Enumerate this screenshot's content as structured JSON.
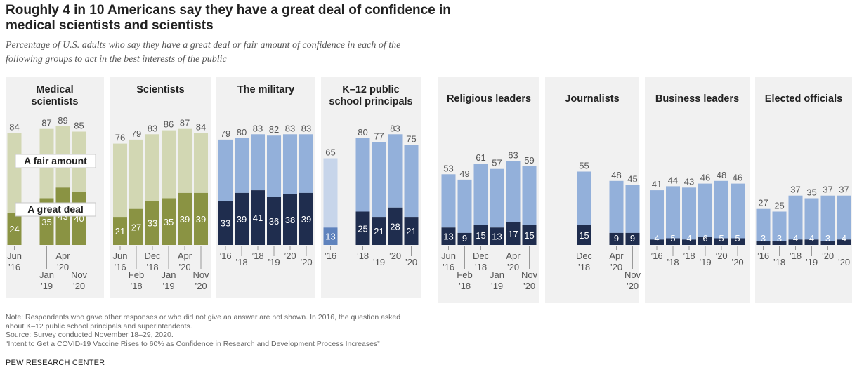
{
  "title": "Roughly 4 in 10 Americans say they have a great deal of confidence in medical scientists and scientists",
  "subtitle": "Percentage of U.S. adults who say they have a great deal or fair amount of confidence in each of the following groups to act in the best interests of the public",
  "note_lines": [
    "Note: Respondents who gave other responses or who did not give an answer are not shown. In 2016, the question asked",
    "about K–12 public school principals and superintendents.",
    "Source: Survey conducted November 18–29, 2020.",
    "“Intent to Get a COVID-19 Vaccine Rises to 60% as Confidence in Research and Development Process Increases”"
  ],
  "source_label": "PEW RESEARCH CENTER",
  "colors": {
    "panel_bg": "#f1f1f1",
    "green_light": "#d2d7b3",
    "green_dark": "#8a9343",
    "blue_light": "#93b0da",
    "blue_dark": "#1f2d4e",
    "blue_faded_light": "#c7d5ea",
    "blue_faded_dark": "#5f83bd",
    "label_gray": "#555555"
  },
  "chart_data": [
    {
      "type": "bar",
      "stacked": true,
      "title": "Medical scientists",
      "palette": "green",
      "ylim": [
        0,
        100
      ],
      "bars": [
        {
          "slot": 0,
          "total": 84,
          "great_deal": 24
        },
        {
          "slot": 2,
          "total": 87,
          "great_deal": 35
        },
        {
          "slot": 3,
          "total": 89,
          "great_deal": 43
        },
        {
          "slot": 4,
          "total": 85,
          "great_deal": 40
        }
      ],
      "series": [
        {
          "name": "A fair amount"
        },
        {
          "name": "A great deal"
        }
      ],
      "x_labels": [
        {
          "slot": 0,
          "row": "top",
          "l1": "Jun",
          "l2": "’16"
        },
        {
          "slot": 2,
          "row": "bottom",
          "l1": "Jan",
          "l2": "’19"
        },
        {
          "slot": 3,
          "row": "top",
          "l1": "Apr",
          "l2": "’20"
        },
        {
          "slot": 4,
          "row": "bottom",
          "l1": "Nov",
          "l2": "’20"
        }
      ]
    },
    {
      "type": "bar",
      "stacked": true,
      "title": "Scientists",
      "palette": "green",
      "ylim": [
        0,
        100
      ],
      "bars": [
        {
          "slot": 0,
          "total": 76,
          "great_deal": 21
        },
        {
          "slot": 1,
          "total": 79,
          "great_deal": 27
        },
        {
          "slot": 2,
          "total": 83,
          "great_deal": 33
        },
        {
          "slot": 3,
          "total": 86,
          "great_deal": 35
        },
        {
          "slot": 4,
          "total": 87,
          "great_deal": 39
        },
        {
          "slot": 5,
          "total": 84,
          "great_deal": 39
        }
      ],
      "x_labels": [
        {
          "slot": 0,
          "row": "top",
          "l1": "Jun",
          "l2": "’16"
        },
        {
          "slot": 1,
          "row": "bottom",
          "l1": "Feb",
          "l2": "’18"
        },
        {
          "slot": 2,
          "row": "top",
          "l1": "Dec",
          "l2": "’18"
        },
        {
          "slot": 3,
          "row": "bottom",
          "l1": "Jan",
          "l2": "’19"
        },
        {
          "slot": 4,
          "row": "top",
          "l1": "Apr",
          "l2": "’20"
        },
        {
          "slot": 5,
          "row": "bottom",
          "l1": "Nov",
          "l2": "’20"
        }
      ]
    },
    {
      "type": "bar",
      "stacked": true,
      "title": "The military",
      "palette": "blue",
      "ylim": [
        0,
        100
      ],
      "bars": [
        {
          "slot": 0,
          "total": 79,
          "great_deal": 33
        },
        {
          "slot": 1,
          "total": 80,
          "great_deal": 39
        },
        {
          "slot": 2,
          "total": 83,
          "great_deal": 41
        },
        {
          "slot": 3,
          "total": 82,
          "great_deal": 36
        },
        {
          "slot": 4,
          "total": 83,
          "great_deal": 38
        },
        {
          "slot": 5,
          "total": 83,
          "great_deal": 39
        }
      ],
      "x_labels": [
        {
          "slot": 0,
          "row": "top",
          "l1": "’16"
        },
        {
          "slot": 1,
          "row": "mid",
          "l1": "’18"
        },
        {
          "slot": 2,
          "row": "top",
          "l1": "’18"
        },
        {
          "slot": 3,
          "row": "mid",
          "l1": "’19"
        },
        {
          "slot": 4,
          "row": "top",
          "l1": "’20"
        },
        {
          "slot": 5,
          "row": "mid",
          "l1": "’20"
        }
      ]
    },
    {
      "type": "bar",
      "stacked": true,
      "title": "K–12 public school principals",
      "palette": "blue",
      "ylim": [
        0,
        100
      ],
      "bars": [
        {
          "slot": 0,
          "total": 65,
          "great_deal": 13,
          "faded": true
        },
        {
          "slot": 2,
          "total": 80,
          "great_deal": 25
        },
        {
          "slot": 3,
          "total": 77,
          "great_deal": 21
        },
        {
          "slot": 4,
          "total": 83,
          "great_deal": 28
        },
        {
          "slot": 5,
          "total": 75,
          "great_deal": 21
        }
      ],
      "x_labels": [
        {
          "slot": 0,
          "row": "top",
          "l1": "’16"
        },
        {
          "slot": 2,
          "row": "top",
          "l1": "’18"
        },
        {
          "slot": 3,
          "row": "mid",
          "l1": "’19"
        },
        {
          "slot": 4,
          "row": "top",
          "l1": "’20"
        },
        {
          "slot": 5,
          "row": "mid",
          "l1": "’20"
        }
      ]
    },
    {
      "type": "bar",
      "stacked": true,
      "title": "Religious leaders",
      "palette": "blue",
      "ylim": [
        0,
        100
      ],
      "bars": [
        {
          "slot": 0,
          "total": 53,
          "great_deal": 13
        },
        {
          "slot": 1,
          "total": 49,
          "great_deal": 9
        },
        {
          "slot": 2,
          "total": 61,
          "great_deal": 15
        },
        {
          "slot": 3,
          "total": 57,
          "great_deal": 13
        },
        {
          "slot": 4,
          "total": 63,
          "great_deal": 17
        },
        {
          "slot": 5,
          "total": 59,
          "great_deal": 15
        }
      ],
      "x_labels": [
        {
          "slot": 0,
          "row": "top",
          "l1": "Jun",
          "l2": "’16"
        },
        {
          "slot": 1,
          "row": "bottom",
          "l1": "Feb",
          "l2": "’18"
        },
        {
          "slot": 2,
          "row": "top",
          "l1": "Dec",
          "l2": "’18"
        },
        {
          "slot": 3,
          "row": "bottom",
          "l1": "Jan",
          "l2": "’19"
        },
        {
          "slot": 4,
          "row": "top",
          "l1": "Apr",
          "l2": "’20"
        },
        {
          "slot": 5,
          "row": "bottom",
          "l1": "Nov",
          "l2": "’20"
        }
      ]
    },
    {
      "type": "bar",
      "stacked": true,
      "title": "Journalists",
      "palette": "blue",
      "ylim": [
        0,
        100
      ],
      "bars": [
        {
          "slot": 2,
          "total": 55,
          "great_deal": 15
        },
        {
          "slot": 4,
          "total": 48,
          "great_deal": 9
        },
        {
          "slot": 5,
          "total": 45,
          "great_deal": 9
        }
      ],
      "x_labels": [
        {
          "slot": 2,
          "row": "top",
          "l1": "Dec",
          "l2": "’18"
        },
        {
          "slot": 4,
          "row": "top",
          "l1": "Apr",
          "l2": "’20"
        },
        {
          "slot": 5,
          "row": "bottom",
          "l1": "Nov",
          "l2": "’20"
        }
      ]
    },
    {
      "type": "bar",
      "stacked": true,
      "title": "Business leaders",
      "palette": "blue",
      "ylim": [
        0,
        100
      ],
      "bars": [
        {
          "slot": 0,
          "total": 41,
          "great_deal": 4
        },
        {
          "slot": 1,
          "total": 44,
          "great_deal": 5
        },
        {
          "slot": 2,
          "total": 43,
          "great_deal": 4
        },
        {
          "slot": 3,
          "total": 46,
          "great_deal": 6
        },
        {
          "slot": 4,
          "total": 48,
          "great_deal": 5
        },
        {
          "slot": 5,
          "total": 46,
          "great_deal": 5
        }
      ],
      "x_labels": [
        {
          "slot": 0,
          "row": "top",
          "l1": "’16"
        },
        {
          "slot": 1,
          "row": "mid",
          "l1": "’18"
        },
        {
          "slot": 2,
          "row": "top",
          "l1": "’18"
        },
        {
          "slot": 3,
          "row": "mid",
          "l1": "’19"
        },
        {
          "slot": 4,
          "row": "top",
          "l1": "’20"
        },
        {
          "slot": 5,
          "row": "mid",
          "l1": "’20"
        }
      ]
    },
    {
      "type": "bar",
      "stacked": true,
      "title": "Elected officials",
      "palette": "blue",
      "ylim": [
        0,
        100
      ],
      "bars": [
        {
          "slot": 0,
          "total": 27,
          "great_deal": 3
        },
        {
          "slot": 1,
          "total": 25,
          "great_deal": 3
        },
        {
          "slot": 2,
          "total": 37,
          "great_deal": 4
        },
        {
          "slot": 3,
          "total": 35,
          "great_deal": 4
        },
        {
          "slot": 4,
          "total": 37,
          "great_deal": 3
        },
        {
          "slot": 5,
          "total": 37,
          "great_deal": 4
        }
      ],
      "x_labels": [
        {
          "slot": 0,
          "row": "top",
          "l1": "’16"
        },
        {
          "slot": 1,
          "row": "mid",
          "l1": "’18"
        },
        {
          "slot": 2,
          "row": "top",
          "l1": "’18"
        },
        {
          "slot": 3,
          "row": "mid",
          "l1": "’19"
        },
        {
          "slot": 4,
          "row": "top",
          "l1": "’20"
        },
        {
          "slot": 5,
          "row": "mid",
          "l1": "’20"
        }
      ]
    }
  ]
}
